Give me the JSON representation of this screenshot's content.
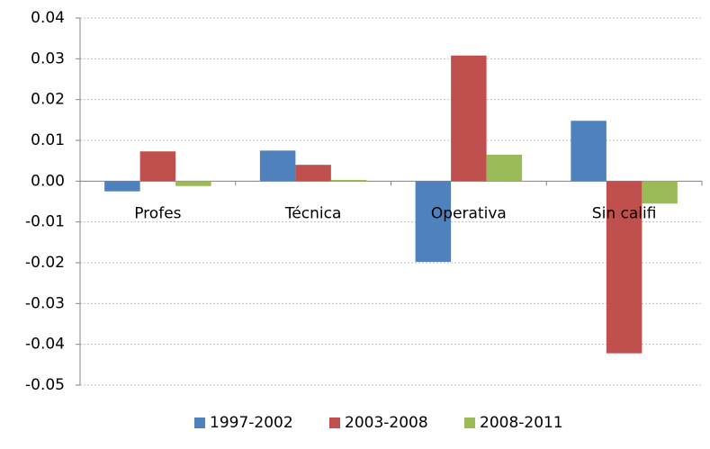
{
  "chart_data": {
    "type": "bar",
    "categories": [
      "Profes",
      "Técnica",
      "Operativa",
      "Sin califi"
    ],
    "series": [
      {
        "name": "1997-2002",
        "color": "#4f81bd",
        "values": [
          -0.0025,
          0.0075,
          -0.0198,
          0.0148
        ]
      },
      {
        "name": "2003-2008",
        "color": "#c0504d",
        "values": [
          0.0073,
          0.004,
          0.0308,
          -0.0422
        ]
      },
      {
        "name": "2008-2011",
        "color": "#9bbb59",
        "values": [
          -0.0012,
          0.0003,
          0.0065,
          -0.0055
        ]
      }
    ],
    "ylim": [
      -0.05,
      0.04
    ],
    "yticks": [
      0.04,
      0.03,
      0.02,
      0.01,
      {
        "value": 0,
        "label": "0.00"
      },
      -0.01,
      -0.02,
      -0.03,
      -0.04,
      -0.05
    ],
    "grid": true,
    "legend": "bottom"
  }
}
